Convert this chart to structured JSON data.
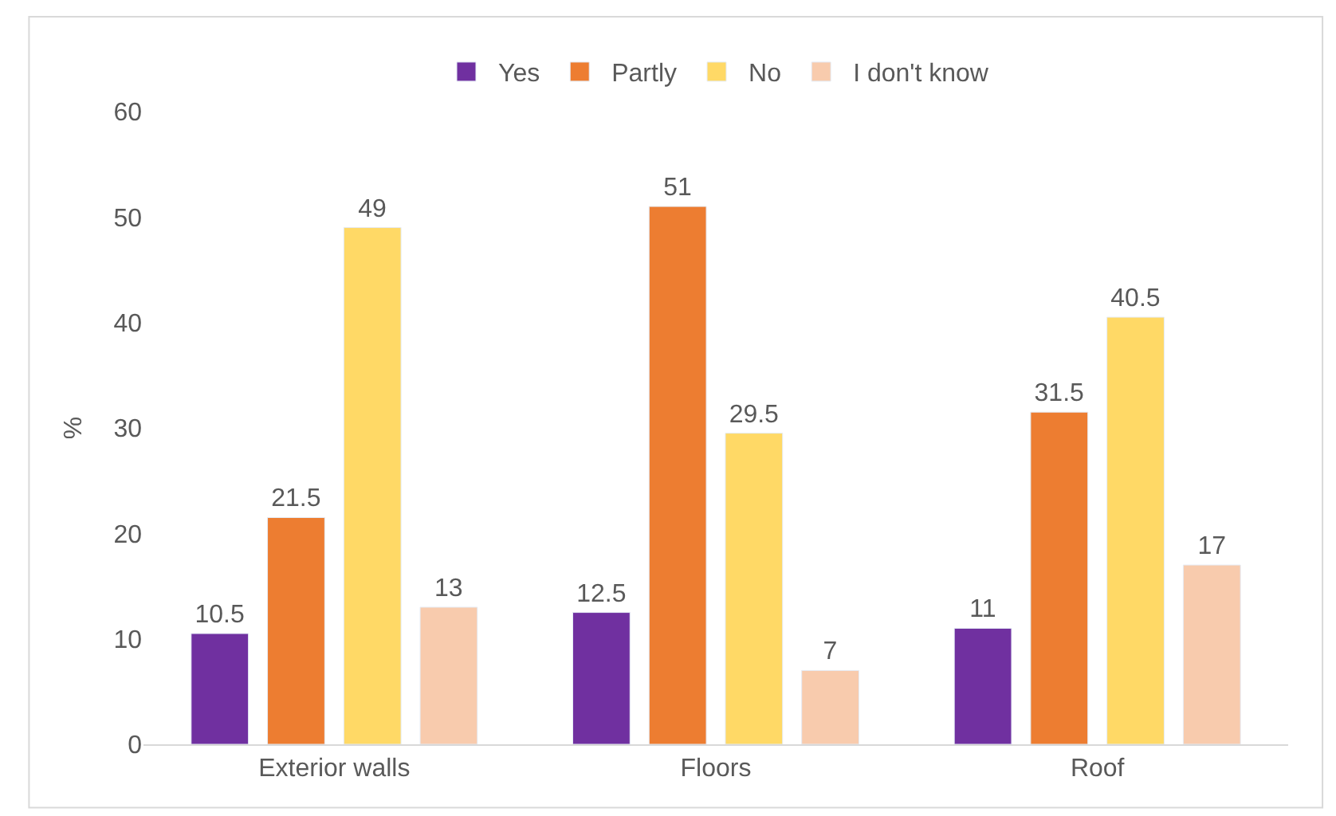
{
  "chart_data": {
    "type": "bar",
    "categories": [
      "Exterior walls",
      "Floors",
      "Roof"
    ],
    "ylabel": "%",
    "ylim": [
      0,
      60
    ],
    "yticks": [
      0,
      10,
      20,
      30,
      40,
      50,
      60
    ],
    "grid": false,
    "legend": "top",
    "data_labels": true,
    "series": [
      {
        "name": "Yes",
        "color": "#7030a0",
        "values": [
          10.5,
          12.5,
          11
        ]
      },
      {
        "name": "Partly",
        "color": "#ed7d31",
        "values": [
          21.5,
          51,
          31.5
        ]
      },
      {
        "name": "No",
        "color": "#ffd966",
        "values": [
          49,
          29.5,
          40.5
        ]
      },
      {
        "name": "I don't know",
        "color": "#f8cbad",
        "values": [
          13,
          7,
          17
        ]
      }
    ]
  }
}
